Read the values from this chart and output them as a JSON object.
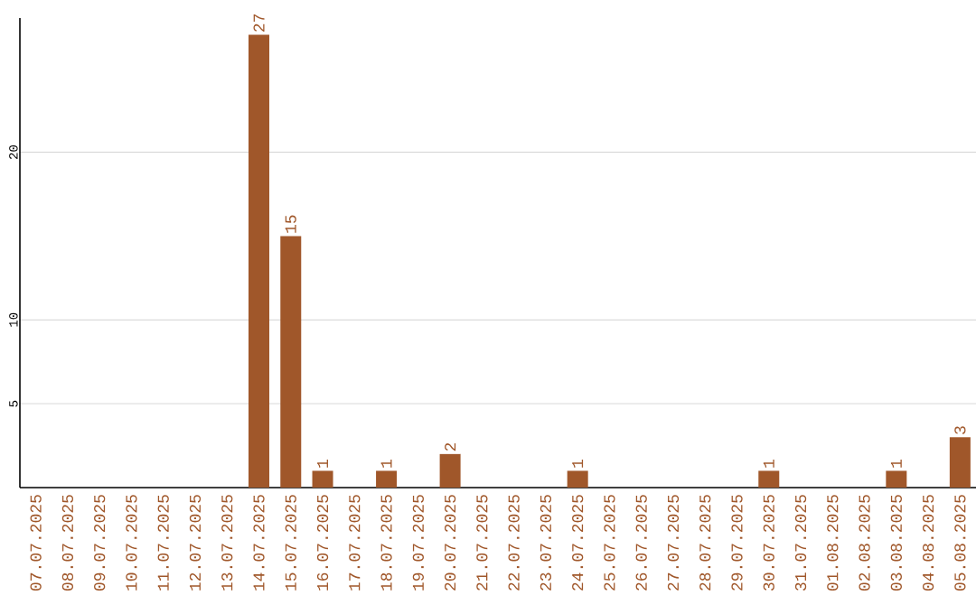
{
  "chart_data": {
    "type": "bar",
    "categories": [
      "07.07.2025",
      "08.07.2025",
      "09.07.2025",
      "10.07.2025",
      "11.07.2025",
      "12.07.2025",
      "13.07.2025",
      "14.07.2025",
      "15.07.2025",
      "16.07.2025",
      "17.07.2025",
      "18.07.2025",
      "19.07.2025",
      "20.07.2025",
      "21.07.2025",
      "22.07.2025",
      "23.07.2025",
      "24.07.2025",
      "25.07.2025",
      "26.07.2025",
      "27.07.2025",
      "28.07.2025",
      "29.07.2025",
      "30.07.2025",
      "31.07.2025",
      "01.08.2025",
      "02.08.2025",
      "03.08.2025",
      "04.08.2025",
      "05.08.2025"
    ],
    "values": [
      0,
      0,
      0,
      0,
      0,
      0,
      0,
      27,
      15,
      1,
      0,
      1,
      0,
      2,
      0,
      0,
      0,
      1,
      0,
      0,
      0,
      0,
      0,
      1,
      0,
      0,
      0,
      1,
      0,
      3
    ],
    "value_labels": [
      null,
      null,
      null,
      null,
      null,
      null,
      null,
      "27",
      "15",
      "1",
      null,
      "1",
      null,
      "2",
      null,
      null,
      null,
      "1",
      null,
      null,
      null,
      null,
      null,
      "1",
      null,
      null,
      null,
      "1",
      null,
      "3"
    ],
    "color": "#a0572a",
    "ylim": [
      0,
      28
    ],
    "yticks": [
      5,
      10,
      20
    ],
    "grid": "y"
  }
}
